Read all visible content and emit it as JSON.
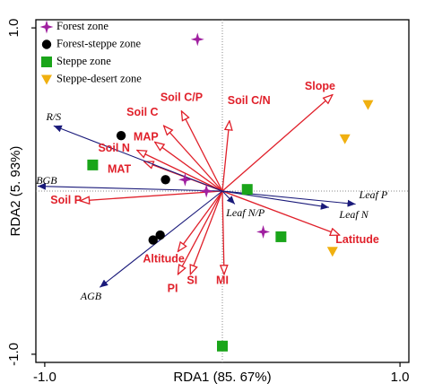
{
  "chart_data": {
    "type": "scatter",
    "title": "",
    "xlabel": "RDA1 (85. 67%)",
    "ylabel": "RDA2 (5. 93%)",
    "xlim": [
      -1.05,
      1.05
    ],
    "ylim": [
      -1.05,
      1.05
    ],
    "xticks": [
      {
        "v": -1.0,
        "label": "-1.0"
      },
      {
        "v": 1.0,
        "label": "1.0"
      }
    ],
    "yticks": [
      {
        "v": 1.0,
        "label": "1.0"
      },
      {
        "v": -1.0,
        "label": "-1.0"
      }
    ],
    "reference_lines": "dotted at x=0 and y=0",
    "legend_position": "top-left",
    "colors": {
      "axis": "#000000",
      "env_arrow": "#e0202a",
      "resp_arrow": "#1a1a7a"
    },
    "legend": [
      {
        "name": "Forest zone",
        "marker": "star",
        "color": "#a020a0"
      },
      {
        "name": "Forest-steppe zone",
        "marker": "circle",
        "color": "#000000"
      },
      {
        "name": "Steppe zone",
        "marker": "square",
        "color": "#1aa51a"
      },
      {
        "name": "Steppe-desert zone",
        "marker": "triangle-down",
        "color": "#f0b010"
      }
    ],
    "series": [
      {
        "name": "Forest zone",
        "marker": "star",
        "color": "#a020a0",
        "points": [
          [
            -0.14,
            0.93
          ],
          [
            -0.21,
            0.07
          ],
          [
            -0.09,
            0.0
          ],
          [
            0.23,
            -0.25
          ]
        ]
      },
      {
        "name": "Forest-steppe zone",
        "marker": "circle",
        "color": "#000000",
        "points": [
          [
            -0.57,
            0.34
          ],
          [
            -0.32,
            0.07
          ],
          [
            -0.39,
            -0.3
          ],
          [
            -0.35,
            -0.27
          ]
        ]
      },
      {
        "name": "Steppe zone",
        "marker": "square",
        "color": "#1aa51a",
        "points": [
          [
            -0.73,
            0.16
          ],
          [
            0.14,
            0.01
          ],
          [
            0.33,
            -0.28
          ],
          [
            0.0,
            -0.95
          ]
        ]
      },
      {
        "name": "Steppe-desert zone",
        "marker": "triangle-down",
        "color": "#f0b010",
        "points": [
          [
            0.82,
            0.53
          ],
          [
            0.69,
            0.32
          ],
          [
            0.62,
            -0.37
          ]
        ]
      }
    ],
    "env_vectors": [
      {
        "name": "Slope",
        "x": 0.62,
        "y": 0.59,
        "lx": 0.55,
        "ly": 0.64
      },
      {
        "name": "Soil C/N",
        "x": 0.04,
        "y": 0.43,
        "lx": 0.15,
        "ly": 0.55
      },
      {
        "name": "Soil C/P",
        "x": -0.23,
        "y": 0.49,
        "lx": -0.23,
        "ly": 0.57
      },
      {
        "name": "Soil C",
        "x": -0.33,
        "y": 0.4,
        "lx": -0.45,
        "ly": 0.48
      },
      {
        "name": "MAP",
        "x": -0.38,
        "y": 0.3,
        "lx": -0.43,
        "ly": 0.33
      },
      {
        "name": "Soil N",
        "x": -0.48,
        "y": 0.25,
        "lx": -0.61,
        "ly": 0.26
      },
      {
        "name": "MAT",
        "x": -0.44,
        "y": 0.18,
        "lx": -0.58,
        "ly": 0.13
      },
      {
        "name": "Soil P",
        "x": -0.8,
        "y": -0.06,
        "lx": -0.88,
        "ly": -0.06
      },
      {
        "name": "Altitude",
        "x": -0.25,
        "y": -0.37,
        "lx": -0.33,
        "ly": -0.42
      },
      {
        "name": "SI",
        "x": -0.18,
        "y": -0.51,
        "lx": -0.17,
        "ly": -0.55
      },
      {
        "name": "PI",
        "x": -0.25,
        "y": -0.51,
        "lx": -0.28,
        "ly": -0.6
      },
      {
        "name": "MI",
        "x": 0.01,
        "y": -0.51,
        "lx": 0.0,
        "ly": -0.55
      },
      {
        "name": "Latitude",
        "x": 0.66,
        "y": -0.27,
        "lx": 0.76,
        "ly": -0.3
      }
    ],
    "response_vectors": [
      {
        "name": "R/S",
        "x": -0.95,
        "y": 0.4,
        "lx": -0.95,
        "ly": 0.45
      },
      {
        "name": "BGB",
        "x": -1.04,
        "y": 0.03,
        "lx": -0.99,
        "ly": 0.06
      },
      {
        "name": "AGB",
        "x": -0.69,
        "y": -0.59,
        "lx": -0.74,
        "ly": -0.65
      },
      {
        "name": "Leaf P",
        "x": 0.75,
        "y": -0.08,
        "lx": 0.85,
        "ly": -0.03
      },
      {
        "name": "Leaf N",
        "x": 0.6,
        "y": -0.1,
        "lx": 0.74,
        "ly": -0.15
      },
      {
        "name": "Leaf N/P",
        "x": 0.07,
        "y": -0.08,
        "lx": 0.13,
        "ly": -0.14
      }
    ]
  }
}
